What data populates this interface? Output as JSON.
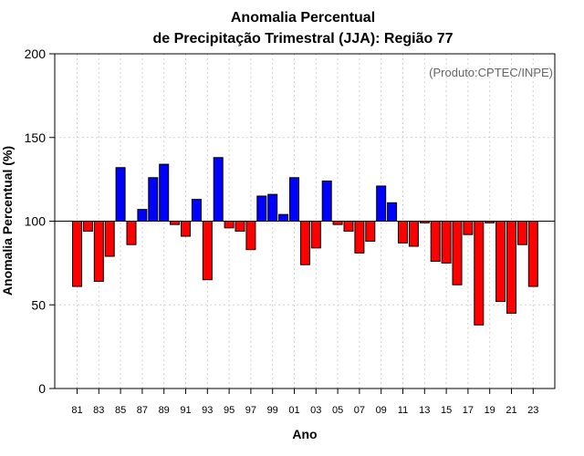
{
  "chart_data": {
    "type": "bar",
    "title_line1": "Anomalia Percentual",
    "title_line2": "de Precipitação Trimestral (JJA): Região 77",
    "xlabel": "Ano",
    "ylabel": "Anomalia Percentual (%)",
    "credit": "(Produto:CPTEC/INPE)",
    "ylim": [
      0,
      200
    ],
    "yticks": [
      0,
      50,
      100,
      150,
      200
    ],
    "baseline": 100,
    "grid": true,
    "colors": {
      "above": "#0000ff",
      "below": "#ff0000",
      "edge": "#000000",
      "grid": "#d3d3d3"
    },
    "categories": [
      "81",
      "82",
      "83",
      "84",
      "85",
      "86",
      "87",
      "88",
      "89",
      "90",
      "91",
      "92",
      "93",
      "94",
      "95",
      "96",
      "97",
      "98",
      "99",
      "00",
      "01",
      "02",
      "03",
      "04",
      "05",
      "06",
      "07",
      "08",
      "09",
      "10",
      "11",
      "12",
      "13",
      "14",
      "15",
      "16",
      "17",
      "18",
      "19",
      "20",
      "21",
      "22",
      "23"
    ],
    "tick_labels": [
      "81",
      "83",
      "85",
      "87",
      "89",
      "91",
      "93",
      "95",
      "97",
      "99",
      "01",
      "03",
      "05",
      "07",
      "09",
      "11",
      "13",
      "15",
      "17",
      "19",
      "21",
      "23"
    ],
    "values": [
      61,
      94,
      64,
      79,
      132,
      86,
      107,
      126,
      134,
      98,
      91,
      113,
      65,
      138,
      96,
      94,
      83,
      115,
      116,
      104,
      126,
      74,
      84,
      124,
      98,
      94,
      81,
      88,
      121,
      111,
      87,
      85,
      99,
      76,
      75,
      62,
      92,
      38,
      99,
      52,
      45,
      86,
      61
    ]
  }
}
